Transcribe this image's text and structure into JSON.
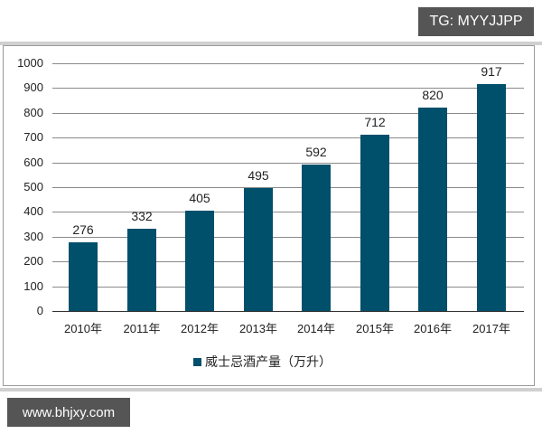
{
  "watermarks": {
    "top": "TG: MYYJJPP",
    "bottom": "www.bhjxy.com"
  },
  "colors": {
    "bar": "#004f6b",
    "tag_bg": "#555555"
  },
  "legend": {
    "label": "威士忌酒产量（万升）"
  },
  "y_ticks": [
    "1000",
    "900",
    "800",
    "700",
    "600",
    "500",
    "400",
    "300",
    "200",
    "100",
    "0"
  ],
  "x_ticks": [
    "2010年",
    "2011年",
    "2012年",
    "2013年",
    "2014年",
    "2015年",
    "2016年",
    "2017年"
  ],
  "bar_labels": [
    "276",
    "332",
    "405",
    "495",
    "592",
    "712",
    "820",
    "917"
  ],
  "chart_data": {
    "type": "bar",
    "title": "",
    "xlabel": "",
    "ylabel": "",
    "categories": [
      "2010年",
      "2011年",
      "2012年",
      "2013年",
      "2014年",
      "2015年",
      "2016年",
      "2017年"
    ],
    "series": [
      {
        "name": "威士忌酒产量（万升）",
        "values": [
          276,
          332,
          405,
          495,
          592,
          712,
          820,
          917
        ]
      }
    ],
    "ylim": [
      0,
      1000
    ],
    "yticks": [
      0,
      100,
      200,
      300,
      400,
      500,
      600,
      700,
      800,
      900,
      1000
    ],
    "grid": true,
    "legend_position": "bottom",
    "data_labels": true
  }
}
